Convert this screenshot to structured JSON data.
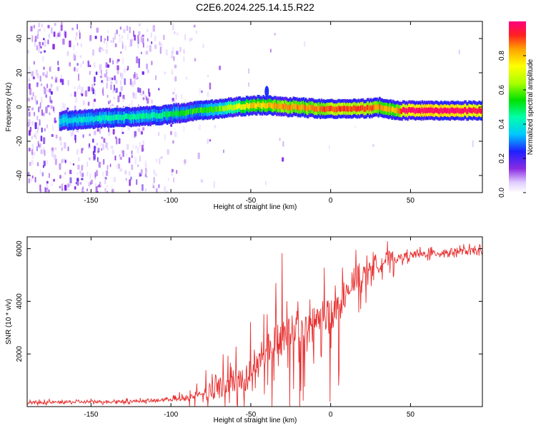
{
  "title": "C2E6.2024.225.14.15.R22",
  "chart_data": [
    {
      "type": "heatmap",
      "xlabel": "Height of straight line (km)",
      "ylabel": "Frequency (Hz)",
      "xlim": [
        -190,
        95
      ],
      "ylim": [
        -50,
        50
      ],
      "xticks": [
        -150,
        -100,
        -50,
        0,
        50
      ],
      "yticks": [
        40,
        20,
        0,
        -20,
        -40
      ],
      "colorbar": {
        "label": "Normalized spectral amplitude",
        "range": [
          0,
          1
        ],
        "ticks": [
          0.0,
          0.2,
          0.4,
          0.6,
          0.8
        ]
      },
      "ridge": {
        "x": [
          -170,
          -150,
          -130,
          -110,
          -100,
          -90,
          -80,
          -70,
          -60,
          -50,
          -40,
          -30,
          -20,
          -10,
          0,
          10,
          20,
          30,
          40,
          45,
          50,
          60,
          70,
          80,
          95
        ],
        "freq": [
          -8,
          -7,
          -6,
          -5,
          -4,
          -3,
          -2,
          -1,
          0,
          1,
          1,
          0,
          0,
          -1,
          -1,
          -1,
          -1,
          0,
          -2,
          -2,
          -2,
          -2,
          -2,
          -2,
          -2
        ],
        "amplitude": [
          0.35,
          0.4,
          0.45,
          0.45,
          0.5,
          0.55,
          0.55,
          0.6,
          0.7,
          0.8,
          0.8,
          0.85,
          0.85,
          0.85,
          0.9,
          0.9,
          0.9,
          0.85,
          0.8,
          0.95,
          1.0,
          1.0,
          1.0,
          1.0,
          0.95
        ]
      },
      "colors": {
        "band": "#e8e8e8"
      }
    },
    {
      "type": "line",
      "xlabel": "Height of straight line (km)",
      "ylabel": "SNR (10 * v/v)",
      "xlim": [
        -190,
        95
      ],
      "ylim": [
        0,
        6450
      ],
      "xticks": [
        -150,
        -100,
        -50,
        0,
        50
      ],
      "yticks": [
        2000,
        4000,
        6000
      ],
      "series": [
        {
          "color": "#e83232",
          "x": [
            -190,
            -150,
            -110,
            -100,
            -95,
            -90,
            -85,
            -80,
            -75,
            -70,
            -65,
            -60,
            -55,
            -50,
            -45,
            -40,
            -35,
            -30,
            -25,
            -20,
            -15,
            -10,
            -5,
            0,
            5,
            10,
            15,
            20,
            25,
            30,
            35,
            40,
            50,
            60,
            70,
            80,
            95
          ],
          "y": [
            150,
            180,
            220,
            300,
            260,
            350,
            420,
            550,
            650,
            700,
            800,
            900,
            1100,
            1300,
            1700,
            2100,
            2500,
            2700,
            2900,
            3000,
            3000,
            3100,
            3200,
            3500,
            3900,
            4300,
            4600,
            5000,
            5200,
            5400,
            5600,
            5600,
            5750,
            5800,
            5850,
            5900,
            5900
          ]
        }
      ]
    }
  ]
}
